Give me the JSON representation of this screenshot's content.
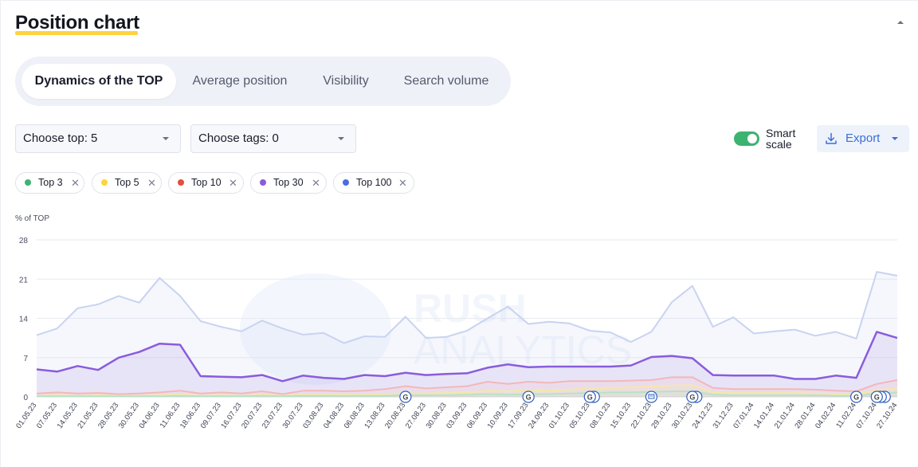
{
  "header": {
    "title": "Position chart"
  },
  "tabs": [
    {
      "label": "Dynamics of the TOP",
      "active": true
    },
    {
      "label": "Average position",
      "active": false
    },
    {
      "label": "Visibility",
      "active": false
    },
    {
      "label": "Search volume",
      "active": false
    }
  ],
  "controls": {
    "choose_top": "Choose top: 5",
    "choose_tags": "Choose tags: 0",
    "smart_scale_line1": "Smart",
    "smart_scale_line2": "scale",
    "smart_scale_on": true,
    "export_label": "Export"
  },
  "filters": [
    {
      "label": "Top 3",
      "color": "#3cb371"
    },
    {
      "label": "Top 5",
      "color": "#ffd23f"
    },
    {
      "label": "Top 10",
      "color": "#e84c3d"
    },
    {
      "label": "Top 30",
      "color": "#8a5cdc"
    },
    {
      "label": "Top 100",
      "color": "#4a6ee0"
    }
  ],
  "watermark": {
    "line1": "RUSH",
    "line2": "ANALYTICS"
  },
  "chart_data": {
    "type": "line",
    "ylabel": "% of TOP",
    "ylim": [
      0,
      28
    ],
    "yticks": [
      0,
      7,
      14,
      21,
      28
    ],
    "grid": true,
    "x": [
      "01.05.23",
      "07.05.23",
      "14.05.23",
      "21.05.23",
      "28.05.23",
      "30.05.23",
      "04.06.23",
      "11.06.23",
      "18.06.23",
      "09.07.23",
      "16.07.23",
      "20.07.23",
      "23.07.23",
      "30.07.23",
      "03.08.23",
      "04.08.23",
      "06.08.23",
      "13.08.23",
      "20.08.23",
      "27.08.23",
      "30.08.23",
      "03.09.23",
      "06.09.23",
      "10.09.23",
      "17.09.23",
      "24.09.23",
      "01.10.23",
      "05.10.23",
      "08.10.23",
      "15.10.23",
      "22.10.23",
      "29.10.23",
      "30.10.23",
      "24.12.23",
      "31.12.23",
      "07.01.24",
      "14.01.24",
      "21.01.24",
      "28.01.24",
      "04.02.24",
      "11.02.24",
      "07.10.24",
      "27.10.24"
    ],
    "series": [
      {
        "name": "Top 100",
        "color": "#c9d3f0",
        "values": [
          11,
          12.2,
          15.8,
          16.5,
          18,
          16.8,
          21.2,
          18,
          13.5,
          12.5,
          11.7,
          13.6,
          12.2,
          11.1,
          11.4,
          9.6,
          10.8,
          10.7,
          14.3,
          10.5,
          10.7,
          11.8,
          14,
          16.1,
          13,
          13.4,
          13.1,
          11.8,
          11.5,
          9.8,
          11.6,
          16.9,
          19.8,
          12.5,
          14.2,
          11.3,
          11.7,
          12,
          10.9,
          11.6,
          10.4,
          22.3,
          21.6
        ]
      },
      {
        "name": "Top 30",
        "color": "#8a5cdc",
        "values": [
          4.9,
          4.5,
          5.5,
          4.8,
          7,
          8,
          9.5,
          9.3,
          3.7,
          3.6,
          3.5,
          3.9,
          2.8,
          3.8,
          3.4,
          3.2,
          3.9,
          3.7,
          4.3,
          3.9,
          4.1,
          4.2,
          5.2,
          5.8,
          5.3,
          5.4,
          5.4,
          5.4,
          5.4,
          5.6,
          7.1,
          7.3,
          6.9,
          3.9,
          3.8,
          3.8,
          3.8,
          3.2,
          3.2,
          3.8,
          3.4,
          11.6,
          10.5
        ]
      },
      {
        "name": "Top 10",
        "color": "#f2b8b8",
        "values": [
          0.6,
          0.8,
          0.6,
          0.7,
          0.5,
          0.6,
          0.8,
          1.1,
          0.6,
          0.8,
          0.6,
          1.0,
          0.5,
          1.1,
          1.1,
          1.0,
          1.1,
          1.4,
          1.9,
          1.5,
          1.7,
          1.9,
          2.7,
          2.3,
          2.7,
          2.5,
          2.8,
          2.8,
          2.8,
          2.9,
          3.0,
          3.5,
          3.5,
          1.6,
          1.4,
          1.4,
          1.4,
          1.4,
          1.3,
          1.1,
          1.0,
          2.3,
          3.0
        ]
      },
      {
        "name": "Top 5",
        "color": "#f5e7a8",
        "values": [
          0.2,
          0.3,
          0.2,
          0.3,
          0.2,
          0.2,
          0.3,
          0.4,
          0.2,
          0.3,
          0.2,
          0.4,
          0.2,
          0.4,
          0.4,
          0.4,
          0.4,
          0.5,
          0.7,
          0.6,
          0.7,
          0.8,
          1.1,
          1.0,
          1.2,
          1.1,
          1.3,
          1.5,
          1.6,
          1.7,
          1.8,
          2.0,
          2.1,
          0.8,
          0.7,
          0.7,
          0.7,
          0.7,
          0.6,
          0.5,
          0.5,
          1.2,
          1.5
        ]
      },
      {
        "name": "Top 3",
        "color": "#b8e2c6",
        "values": [
          0.1,
          0.1,
          0.1,
          0.1,
          0.1,
          0.1,
          0.1,
          0.2,
          0.1,
          0.1,
          0.1,
          0.2,
          0.1,
          0.2,
          0.2,
          0.2,
          0.2,
          0.2,
          0.3,
          0.3,
          0.3,
          0.4,
          0.5,
          0.4,
          0.5,
          0.5,
          0.6,
          0.7,
          0.8,
          0.8,
          0.9,
          1.0,
          1.0,
          0.4,
          0.3,
          0.3,
          0.3,
          0.3,
          0.3,
          0.2,
          0.2,
          0.6,
          0.8
        ]
      }
    ],
    "highlight_series": "Top 30",
    "annotations": [
      {
        "x": "20.08.23",
        "icon": "google-icon",
        "count": 1
      },
      {
        "x": "17.09.23",
        "icon": "google-icon",
        "count": 1
      },
      {
        "x": "05.10.23",
        "icon": "google-icon",
        "count": 2
      },
      {
        "x": "22.10.23",
        "icon": "note-icon",
        "count": 1
      },
      {
        "x": "30.10.23",
        "icon": "google-icon",
        "count": 2
      },
      {
        "x": "11.02.24",
        "icon": "google-icon",
        "count": 1
      },
      {
        "x": "07.10.24",
        "icon": "google-icon",
        "count": 3
      }
    ]
  }
}
